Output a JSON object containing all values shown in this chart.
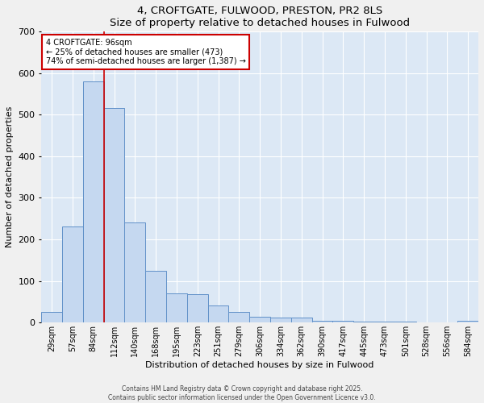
{
  "title": "4, CROFTGATE, FULWOOD, PRESTON, PR2 8LS",
  "subtitle": "Size of property relative to detached houses in Fulwood",
  "xlabel": "Distribution of detached houses by size in Fulwood",
  "ylabel": "Number of detached properties",
  "categories": [
    "29sqm",
    "57sqm",
    "84sqm",
    "112sqm",
    "140sqm",
    "168sqm",
    "195sqm",
    "223sqm",
    "251sqm",
    "279sqm",
    "306sqm",
    "334sqm",
    "362sqm",
    "390sqm",
    "417sqm",
    "445sqm",
    "473sqm",
    "501sqm",
    "528sqm",
    "556sqm",
    "584sqm"
  ],
  "values": [
    25,
    232,
    580,
    515,
    240,
    125,
    70,
    68,
    42,
    25,
    15,
    13,
    13,
    5,
    4,
    3,
    3,
    2,
    1,
    1,
    4
  ],
  "bar_color": "#c5d8f0",
  "bar_edge_color": "#6090c8",
  "highlight_color": "#cc0000",
  "annotation_text": "4 CROFTGATE: 96sqm\n← 25% of detached houses are smaller (473)\n74% of semi-detached houses are larger (1,387) →",
  "annotation_box_color": "#ffffff",
  "annotation_box_edge": "#cc0000",
  "ylim": [
    0,
    700
  ],
  "yticks": [
    0,
    100,
    200,
    300,
    400,
    500,
    600,
    700
  ],
  "plot_bg_color": "#dce8f5",
  "fig_bg_color": "#f0f0f0",
  "footer_line1": "Contains HM Land Registry data © Crown copyright and database right 2025.",
  "footer_line2": "Contains public sector information licensed under the Open Government Licence v3.0."
}
